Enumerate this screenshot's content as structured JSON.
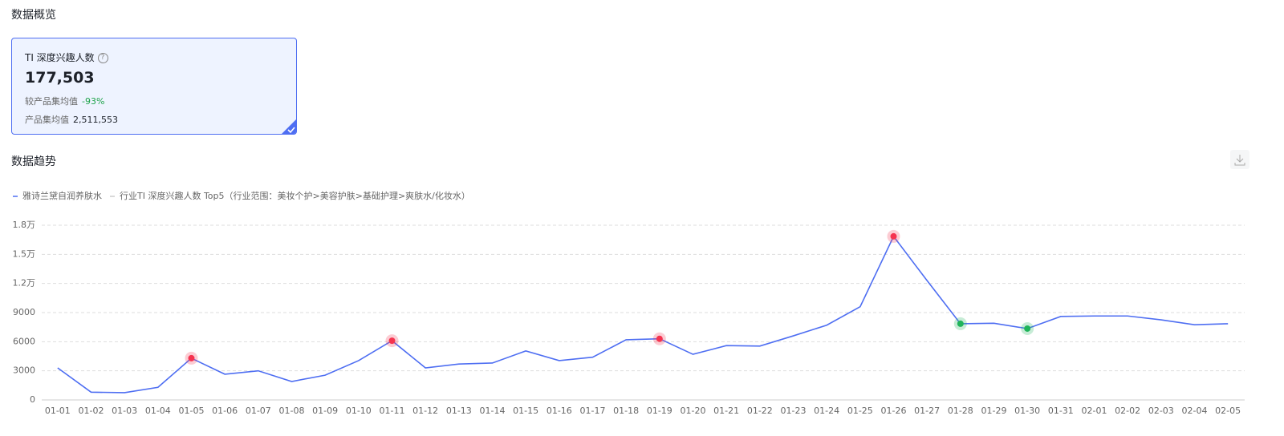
{
  "header": {
    "title": "数据概览"
  },
  "card": {
    "metric_label": "TI 深度兴趣人数",
    "value": "177,503",
    "compare_label": "较产品集均值",
    "compare_value": "-93%",
    "avg_label": "产品集均值",
    "avg_value": "2,511,553"
  },
  "trend": {
    "title": "数据趋势"
  },
  "chart_data": {
    "type": "line",
    "categories": [
      "01-01",
      "01-02",
      "01-03",
      "01-04",
      "01-05",
      "01-06",
      "01-07",
      "01-08",
      "01-09",
      "01-10",
      "01-11",
      "01-12",
      "01-13",
      "01-14",
      "01-15",
      "01-16",
      "01-17",
      "01-18",
      "01-19",
      "01-20",
      "01-21",
      "01-22",
      "01-23",
      "01-24",
      "01-25",
      "01-26",
      "01-27",
      "01-28",
      "01-29",
      "01-30",
      "01-31",
      "02-01",
      "02-02",
      "02-03",
      "02-04",
      "02-05"
    ],
    "series": [
      {
        "name": "雅诗兰黛自润养肤水",
        "color": "#4e6ef2",
        "values": [
          3300,
          800,
          750,
          1300,
          4300,
          2650,
          3000,
          1900,
          2550,
          4050,
          6100,
          3300,
          3700,
          3800,
          5050,
          4050,
          4400,
          6200,
          6300,
          4700,
          5600,
          5550,
          6600,
          7700,
          9600,
          16850,
          12300,
          7850,
          7900,
          7350,
          8600,
          8650,
          8650,
          8250,
          7750,
          7850
        ]
      },
      {
        "name": "行业TI 深度兴趣人数 Top5（行业范围：美妆个护>美容护肤>基础护理>爽肤水/化妆水）",
        "color": "#cccccc",
        "values": [
          null,
          null,
          null,
          null,
          null,
          null,
          null,
          null,
          null,
          null,
          null,
          null,
          null,
          null,
          null,
          null,
          null,
          null,
          null,
          null,
          null,
          null,
          null,
          null,
          null,
          null,
          null,
          null,
          null,
          null,
          null,
          null,
          null,
          null,
          null,
          null
        ]
      }
    ],
    "highlight_points": [
      {
        "index": 4,
        "color": "#f5334f"
      },
      {
        "index": 10,
        "color": "#f5334f"
      },
      {
        "index": 18,
        "color": "#f5334f"
      },
      {
        "index": 25,
        "color": "#f5334f"
      },
      {
        "index": 27,
        "color": "#1fb45a"
      },
      {
        "index": 29,
        "color": "#1fb45a"
      }
    ],
    "ylim": [
      0,
      18000
    ],
    "yticks": [
      0,
      3000,
      6000,
      9000,
      {
        "value": 12000,
        "label": "1.2万"
      },
      {
        "value": 15000,
        "label": "1.5万"
      },
      {
        "value": 18000,
        "label": "1.8万"
      }
    ],
    "grid": true
  }
}
